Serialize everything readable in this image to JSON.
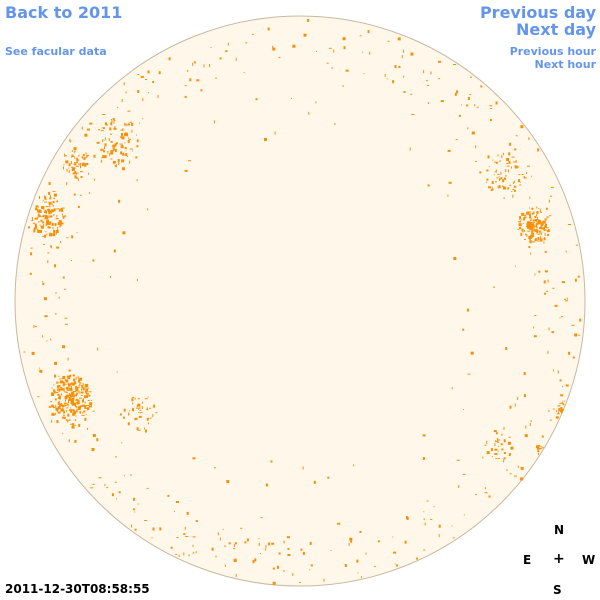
{
  "nav": {
    "back_label": "Back to 2011",
    "facular_label": "See facular data",
    "prev_day_label": "Previous day",
    "next_day_label": "Next day",
    "prev_hour_label": "Previous hour",
    "next_hour_label": "Next hour"
  },
  "compass": {
    "north": "N",
    "east": "E",
    "center": "+",
    "west": "W",
    "south": "S"
  },
  "timestamp": "2011-12-30T08:58:55",
  "colors": {
    "link": "#6495ED",
    "disk_fill": "#FFF8EA",
    "disk_edge": "#C8B8A0",
    "facula": "#F5900A"
  }
}
